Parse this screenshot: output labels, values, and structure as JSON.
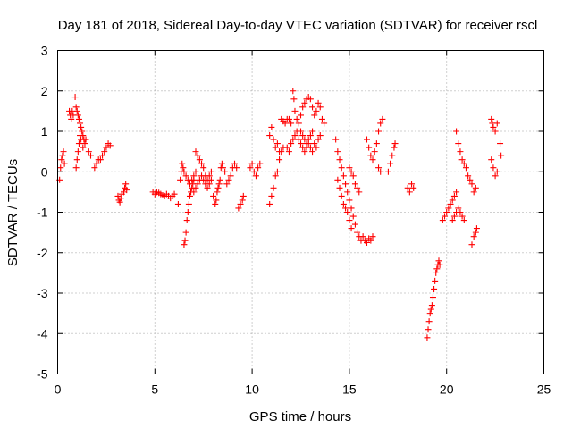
{
  "chart_data": {
    "type": "scatter",
    "title": "Day 181 of 2018, Sidereal Day-to-day VTEC variation (SDTVAR) for receiver rscl",
    "xlabel": "GPS time / hours",
    "ylabel": "SDTVAR / TECUs",
    "xlim": [
      0,
      25
    ],
    "ylim": [
      -5,
      3
    ],
    "xticks": [
      "0",
      "5",
      "10",
      "15",
      "20",
      "25"
    ],
    "yticks": [
      "3",
      "2",
      "1",
      "0",
      "-1",
      "-2",
      "-3",
      "-4",
      "-5"
    ],
    "grid": true,
    "marker": "plus",
    "color": "#ff0000",
    "series": [
      {
        "name": "SDTVAR",
        "points": [
          [
            0.1,
            -0.2
          ],
          [
            0.15,
            0.1
          ],
          [
            0.2,
            0.3
          ],
          [
            0.25,
            0.4
          ],
          [
            0.3,
            0.5
          ],
          [
            0.35,
            0.2
          ],
          [
            0.6,
            1.5
          ],
          [
            0.65,
            1.4
          ],
          [
            0.7,
            1.3
          ],
          [
            0.75,
            1.5
          ],
          [
            0.8,
            1.4
          ],
          [
            0.9,
            1.85
          ],
          [
            0.95,
            1.6
          ],
          [
            1.0,
            1.5
          ],
          [
            1.05,
            1.4
          ],
          [
            1.1,
            1.3
          ],
          [
            1.15,
            1.2
          ],
          [
            1.2,
            1.1
          ],
          [
            1.25,
            1.0
          ],
          [
            1.3,
            0.9
          ],
          [
            1.35,
            0.8
          ],
          [
            1.4,
            0.7
          ],
          [
            0.95,
            0.1
          ],
          [
            1.0,
            0.3
          ],
          [
            1.05,
            0.5
          ],
          [
            1.1,
            0.7
          ],
          [
            1.15,
            0.9
          ],
          [
            1.2,
            0.8
          ],
          [
            1.3,
            0.6
          ],
          [
            1.45,
            0.8
          ],
          [
            1.6,
            0.5
          ],
          [
            1.7,
            0.4
          ],
          [
            1.9,
            0.1
          ],
          [
            2.0,
            0.2
          ],
          [
            2.1,
            0.3
          ],
          [
            2.2,
            0.3
          ],
          [
            2.3,
            0.4
          ],
          [
            2.4,
            0.5
          ],
          [
            2.5,
            0.6
          ],
          [
            2.6,
            0.7
          ],
          [
            2.7,
            0.65
          ],
          [
            3.1,
            -0.6
          ],
          [
            3.15,
            -0.7
          ],
          [
            3.2,
            -0.75
          ],
          [
            3.25,
            -0.65
          ],
          [
            3.3,
            -0.55
          ],
          [
            3.4,
            -0.5
          ],
          [
            3.45,
            -0.4
          ],
          [
            3.5,
            -0.3
          ],
          [
            3.55,
            -0.45
          ],
          [
            4.9,
            -0.5
          ],
          [
            5.0,
            -0.55
          ],
          [
            5.1,
            -0.5
          ],
          [
            5.2,
            -0.52
          ],
          [
            5.3,
            -0.55
          ],
          [
            5.4,
            -0.58
          ],
          [
            5.5,
            -0.6
          ],
          [
            5.6,
            -0.55
          ],
          [
            5.7,
            -0.6
          ],
          [
            5.8,
            -0.65
          ],
          [
            5.9,
            -0.6
          ],
          [
            6.0,
            -0.55
          ],
          [
            6.2,
            -0.8
          ],
          [
            6.3,
            -0.2
          ],
          [
            6.35,
            0.0
          ],
          [
            6.4,
            0.2
          ],
          [
            6.45,
            0.1
          ],
          [
            6.5,
            -1.8
          ],
          [
            6.55,
            -1.7
          ],
          [
            6.6,
            -1.5
          ],
          [
            6.65,
            -1.2
          ],
          [
            6.7,
            -1.0
          ],
          [
            6.75,
            -0.8
          ],
          [
            6.8,
            -0.6
          ],
          [
            6.85,
            -0.5
          ],
          [
            6.9,
            -0.4
          ],
          [
            6.95,
            -0.3
          ],
          [
            7.0,
            -0.2
          ],
          [
            6.5,
            0.0
          ],
          [
            6.6,
            -0.1
          ],
          [
            6.7,
            -0.2
          ],
          [
            6.8,
            -0.3
          ],
          [
            6.9,
            -0.2
          ],
          [
            7.0,
            -0.1
          ],
          [
            7.1,
            0.0
          ],
          [
            7.1,
            0.5
          ],
          [
            7.2,
            0.4
          ],
          [
            7.3,
            0.3
          ],
          [
            7.4,
            0.2
          ],
          [
            7.5,
            0.1
          ],
          [
            7.6,
            -0.1
          ],
          [
            7.7,
            -0.2
          ],
          [
            7.8,
            -0.1
          ],
          [
            7.9,
            0.0
          ],
          [
            7.0,
            -0.5
          ],
          [
            7.1,
            -0.4
          ],
          [
            7.2,
            -0.3
          ],
          [
            7.3,
            -0.2
          ],
          [
            7.4,
            -0.1
          ],
          [
            7.5,
            -0.2
          ],
          [
            7.6,
            -0.3
          ],
          [
            7.7,
            -0.4
          ],
          [
            7.8,
            -0.3
          ],
          [
            7.9,
            -0.2
          ],
          [
            8.0,
            -0.6
          ],
          [
            8.1,
            -0.8
          ],
          [
            8.15,
            -0.7
          ],
          [
            8.2,
            -0.5
          ],
          [
            8.25,
            -0.4
          ],
          [
            8.3,
            -0.3
          ],
          [
            8.35,
            -0.2
          ],
          [
            8.4,
            0.1
          ],
          [
            8.45,
            0.2
          ],
          [
            8.5,
            0.1
          ],
          [
            8.6,
            0.0
          ],
          [
            8.7,
            -0.3
          ],
          [
            8.8,
            -0.2
          ],
          [
            8.9,
            -0.1
          ],
          [
            9.0,
            0.1
          ],
          [
            9.1,
            0.2
          ],
          [
            9.2,
            0.1
          ],
          [
            9.3,
            -0.9
          ],
          [
            9.4,
            -0.8
          ],
          [
            9.5,
            -0.7
          ],
          [
            9.55,
            -0.6
          ],
          [
            9.9,
            0.1
          ],
          [
            10.0,
            0.2
          ],
          [
            10.1,
            0.0
          ],
          [
            10.2,
            -0.1
          ],
          [
            10.3,
            0.1
          ],
          [
            10.4,
            0.2
          ],
          [
            10.9,
            -0.8
          ],
          [
            11.0,
            -0.6
          ],
          [
            11.1,
            -0.4
          ],
          [
            11.2,
            -0.1
          ],
          [
            11.3,
            0.0
          ],
          [
            11.4,
            0.3
          ],
          [
            11.5,
            0.5
          ],
          [
            11.6,
            0.6
          ],
          [
            10.9,
            0.9
          ],
          [
            11.0,
            1.1
          ],
          [
            11.1,
            0.8
          ],
          [
            11.2,
            0.6
          ],
          [
            11.3,
            0.7
          ],
          [
            11.4,
            0.5
          ],
          [
            11.5,
            1.3
          ],
          [
            11.6,
            1.25
          ],
          [
            11.7,
            1.2
          ],
          [
            11.8,
            1.3
          ],
          [
            11.9,
            1.3
          ],
          [
            12.0,
            1.2
          ],
          [
            11.8,
            0.6
          ],
          [
            11.9,
            0.5
          ],
          [
            12.0,
            0.7
          ],
          [
            12.1,
            0.8
          ],
          [
            12.2,
            0.9
          ],
          [
            12.3,
            1.0
          ],
          [
            12.4,
            0.8
          ],
          [
            12.5,
            0.7
          ],
          [
            12.6,
            0.6
          ],
          [
            12.7,
            0.5
          ],
          [
            12.8,
            0.6
          ],
          [
            12.9,
            0.7
          ],
          [
            13.0,
            0.6
          ],
          [
            13.1,
            0.5
          ],
          [
            13.2,
            0.7
          ],
          [
            13.3,
            0.6
          ],
          [
            13.4,
            0.8
          ],
          [
            13.5,
            0.9
          ],
          [
            12.1,
            2.0
          ],
          [
            12.15,
            1.8
          ],
          [
            12.2,
            1.5
          ],
          [
            12.3,
            1.3
          ],
          [
            12.4,
            1.2
          ],
          [
            12.5,
            1.4
          ],
          [
            12.6,
            1.6
          ],
          [
            12.7,
            1.7
          ],
          [
            12.8,
            1.8
          ],
          [
            12.9,
            1.85
          ],
          [
            13.0,
            1.8
          ],
          [
            13.1,
            1.6
          ],
          [
            13.2,
            1.4
          ],
          [
            13.3,
            1.5
          ],
          [
            13.4,
            1.7
          ],
          [
            13.5,
            1.6
          ],
          [
            13.6,
            1.3
          ],
          [
            13.7,
            1.2
          ],
          [
            12.5,
            1.0
          ],
          [
            12.6,
            0.9
          ],
          [
            12.7,
            0.8
          ],
          [
            12.8,
            0.7
          ],
          [
            12.9,
            0.8
          ],
          [
            13.0,
            0.9
          ],
          [
            13.1,
            1.0
          ],
          [
            14.3,
            0.8
          ],
          [
            14.4,
            0.5
          ],
          [
            14.5,
            0.3
          ],
          [
            14.6,
            0.1
          ],
          [
            14.7,
            -0.1
          ],
          [
            14.8,
            -0.3
          ],
          [
            14.9,
            -0.5
          ],
          [
            15.0,
            -0.7
          ],
          [
            15.1,
            -0.9
          ],
          [
            15.2,
            -1.1
          ],
          [
            15.3,
            -1.3
          ],
          [
            15.4,
            -1.5
          ],
          [
            15.5,
            -1.6
          ],
          [
            15.6,
            -1.7
          ],
          [
            14.4,
            -0.2
          ],
          [
            14.5,
            -0.4
          ],
          [
            14.6,
            -0.6
          ],
          [
            14.7,
            -0.8
          ],
          [
            14.8,
            -0.9
          ],
          [
            14.9,
            -1.0
          ],
          [
            15.0,
            -1.2
          ],
          [
            15.1,
            -1.4
          ],
          [
            15.0,
            0.1
          ],
          [
            15.1,
            0.0
          ],
          [
            15.2,
            -0.1
          ],
          [
            15.3,
            -0.3
          ],
          [
            15.4,
            -0.4
          ],
          [
            15.5,
            -0.5
          ],
          [
            15.7,
            -1.6
          ],
          [
            15.8,
            -1.7
          ],
          [
            15.9,
            -1.75
          ],
          [
            16.0,
            -1.65
          ],
          [
            16.1,
            -1.7
          ],
          [
            16.2,
            -1.6
          ],
          [
            15.9,
            0.8
          ],
          [
            16.0,
            0.6
          ],
          [
            16.1,
            0.4
          ],
          [
            16.2,
            0.3
          ],
          [
            16.3,
            0.5
          ],
          [
            16.4,
            0.7
          ],
          [
            16.5,
            1.0
          ],
          [
            16.6,
            1.2
          ],
          [
            16.7,
            1.3
          ],
          [
            16.5,
            0.1
          ],
          [
            16.6,
            0.0
          ],
          [
            17.0,
            0.0
          ],
          [
            17.1,
            0.2
          ],
          [
            17.2,
            0.4
          ],
          [
            17.3,
            0.6
          ],
          [
            17.35,
            0.7
          ],
          [
            18.0,
            -0.4
          ],
          [
            18.1,
            -0.5
          ],
          [
            18.2,
            -0.3
          ],
          [
            18.3,
            -0.4
          ],
          [
            19.0,
            -4.1
          ],
          [
            19.05,
            -3.9
          ],
          [
            19.1,
            -3.7
          ],
          [
            19.15,
            -3.5
          ],
          [
            19.2,
            -3.4
          ],
          [
            19.25,
            -3.3
          ],
          [
            19.3,
            -3.1
          ],
          [
            19.35,
            -2.9
          ],
          [
            19.4,
            -2.7
          ],
          [
            19.45,
            -2.5
          ],
          [
            19.5,
            -2.4
          ],
          [
            19.55,
            -2.3
          ],
          [
            19.6,
            -2.2
          ],
          [
            19.65,
            -2.3
          ],
          [
            19.8,
            -1.2
          ],
          [
            19.9,
            -1.1
          ],
          [
            20.0,
            -1.0
          ],
          [
            20.1,
            -0.9
          ],
          [
            20.2,
            -0.8
          ],
          [
            20.3,
            -0.7
          ],
          [
            20.4,
            -0.6
          ],
          [
            20.5,
            -0.5
          ],
          [
            20.3,
            -1.2
          ],
          [
            20.4,
            -1.1
          ],
          [
            20.5,
            -1.0
          ],
          [
            20.6,
            -0.9
          ],
          [
            20.7,
            -1.0
          ],
          [
            20.8,
            -1.1
          ],
          [
            20.9,
            -1.2
          ],
          [
            20.5,
            1.0
          ],
          [
            20.6,
            0.7
          ],
          [
            20.7,
            0.5
          ],
          [
            20.8,
            0.3
          ],
          [
            20.9,
            0.2
          ],
          [
            21.0,
            0.1
          ],
          [
            21.1,
            -0.1
          ],
          [
            21.2,
            -0.2
          ],
          [
            21.3,
            -1.8
          ],
          [
            21.4,
            -1.6
          ],
          [
            21.5,
            -1.5
          ],
          [
            21.55,
            -1.4
          ],
          [
            21.3,
            -0.3
          ],
          [
            21.4,
            -0.5
          ],
          [
            21.5,
            -0.4
          ],
          [
            22.3,
            1.3
          ],
          [
            22.35,
            1.2
          ],
          [
            22.4,
            1.1
          ],
          [
            22.5,
            1.0
          ],
          [
            22.6,
            1.2
          ],
          [
            22.3,
            0.3
          ],
          [
            22.4,
            0.1
          ],
          [
            22.5,
            -0.1
          ],
          [
            22.6,
            0.0
          ],
          [
            22.75,
            0.7
          ],
          [
            22.8,
            0.4
          ]
        ]
      }
    ]
  }
}
